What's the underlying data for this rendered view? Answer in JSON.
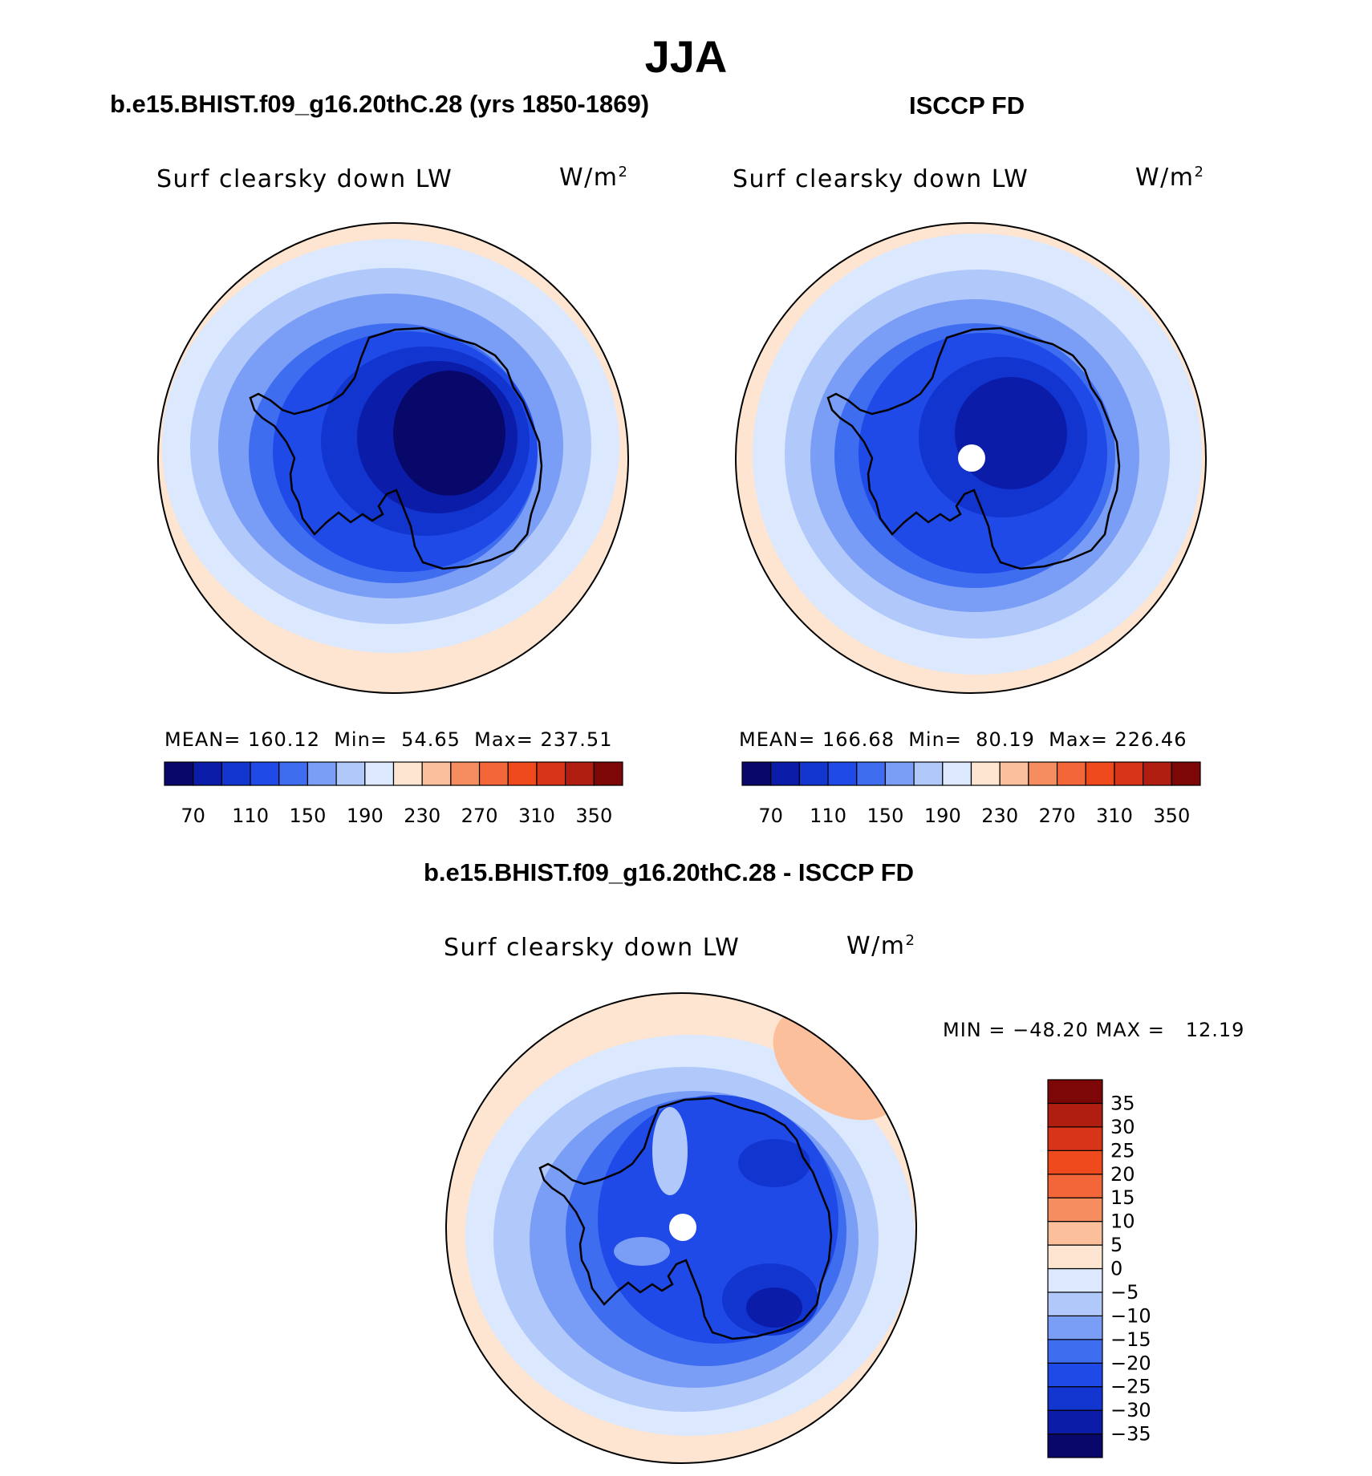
{
  "season": "JJA",
  "panels": {
    "model": {
      "title": "b.e15.BHIST.f09_g16.20thC.28 (yrs 1850-1869)",
      "field_label": "Surf clearsky down LW",
      "units_base": "W/m",
      "units_exp": "2",
      "stats": "MEAN= 160.12  Min=  54.65  Max= 237.51"
    },
    "obs": {
      "title": "ISCCP FD",
      "field_label": "Surf clearsky down LW",
      "units_base": "W/m",
      "units_exp": "2",
      "stats": "MEAN= 166.68  Min=  80.19  Max= 226.46"
    },
    "diff": {
      "title": "b.e15.BHIST.f09_g16.20thC.28 - ISCCP FD",
      "field_label": "Surf clearsky down LW",
      "units_base": "W/m",
      "units_exp": "2",
      "stats": "MIN = −48.20 MAX =   12.19"
    }
  },
  "colorbars": {
    "absolute": {
      "colors": [
        "#08086b",
        "#0b1da8",
        "#1234cf",
        "#1f4ae8",
        "#3f6df0",
        "#7a9df5",
        "#b1c8fa",
        "#dbe8fd",
        "#fde5d2",
        "#fbbf9c",
        "#f68d60",
        "#f2663a",
        "#ee4a1d",
        "#d8341a",
        "#b01e12",
        "#7d0707"
      ],
      "tick_labels": [
        "70",
        "110",
        "150",
        "190",
        "230",
        "270",
        "310",
        "350"
      ]
    },
    "difference": {
      "colors": [
        "#08086b",
        "#0b1da8",
        "#1234cf",
        "#1f4ae8",
        "#3f6df0",
        "#7a9df5",
        "#b1c8fa",
        "#dbe8fd",
        "#fde5d2",
        "#fbbf9c",
        "#f68d60",
        "#f2663a",
        "#ee4a1d",
        "#d8341a",
        "#b01e12",
        "#7d0707"
      ],
      "tick_labels": [
        "−35",
        "−30",
        "−25",
        "−20",
        "−15",
        "−10",
        "−5",
        "0",
        "5",
        "10",
        "15",
        "20",
        "25",
        "30",
        "35"
      ]
    }
  }
}
